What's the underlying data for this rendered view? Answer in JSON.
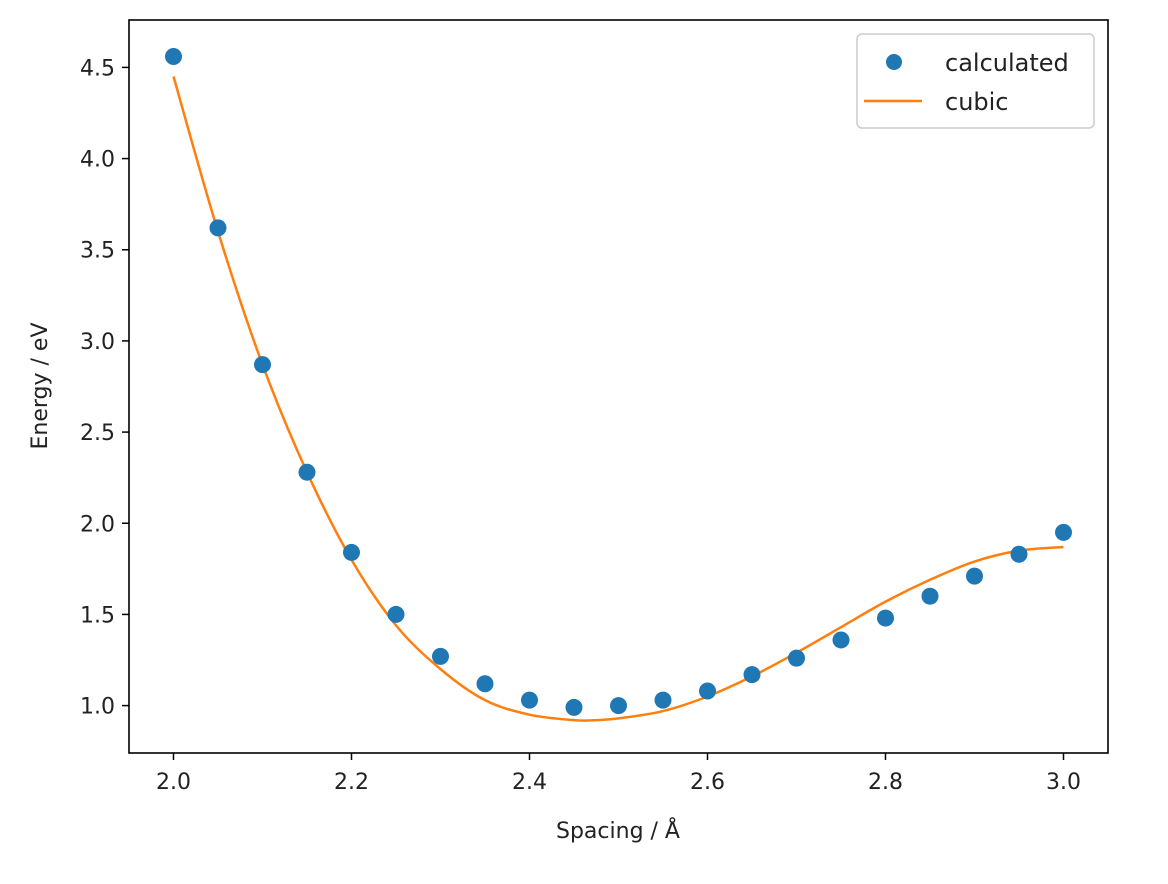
{
  "chart_data": {
    "type": "scatter",
    "title": "",
    "xlabel": "Spacing / Å",
    "ylabel": "Energy / eV",
    "xlim": [
      1.95,
      3.05
    ],
    "ylim": [
      0.74,
      4.76
    ],
    "xticks": [
      2.0,
      2.2,
      2.4,
      2.6,
      2.8,
      3.0
    ],
    "xtick_labels": [
      "2.0",
      "2.2",
      "2.4",
      "2.6",
      "2.8",
      "3.0"
    ],
    "yticks": [
      1.0,
      1.5,
      2.0,
      2.5,
      3.0,
      3.5,
      4.0,
      4.5
    ],
    "ytick_labels": [
      "1.0",
      "1.5",
      "2.0",
      "2.5",
      "3.0",
      "3.5",
      "4.0",
      "4.5"
    ],
    "grid": false,
    "legend_position": "top-right",
    "series": [
      {
        "name": "calculated",
        "kind": "markers",
        "color": "#1f77b4",
        "x": [
          2.0,
          2.05,
          2.1,
          2.15,
          2.2,
          2.25,
          2.3,
          2.35,
          2.4,
          2.45,
          2.5,
          2.55,
          2.6,
          2.65,
          2.7,
          2.75,
          2.8,
          2.85,
          2.9,
          2.95,
          3.0
        ],
        "y": [
          4.56,
          3.62,
          2.87,
          2.28,
          1.84,
          1.5,
          1.27,
          1.12,
          1.03,
          0.99,
          1.0,
          1.03,
          1.08,
          1.17,
          1.26,
          1.36,
          1.48,
          1.6,
          1.71,
          1.83,
          1.95
        ]
      },
      {
        "name": "cubic",
        "kind": "line",
        "color": "#ff7f0e",
        "x": [
          2.0,
          2.05,
          2.1,
          2.15,
          2.2,
          2.25,
          2.3,
          2.35,
          2.4,
          2.45,
          2.475,
          2.5,
          2.55,
          2.6,
          2.65,
          2.7,
          2.75,
          2.8,
          2.85,
          2.9,
          2.95,
          3.0
        ],
        "y": [
          4.45,
          3.6,
          2.87,
          2.28,
          1.8,
          1.44,
          1.2,
          1.03,
          0.95,
          0.92,
          0.92,
          0.93,
          0.97,
          1.05,
          1.16,
          1.29,
          1.43,
          1.57,
          1.69,
          1.79,
          1.85,
          1.87
        ]
      }
    ]
  }
}
